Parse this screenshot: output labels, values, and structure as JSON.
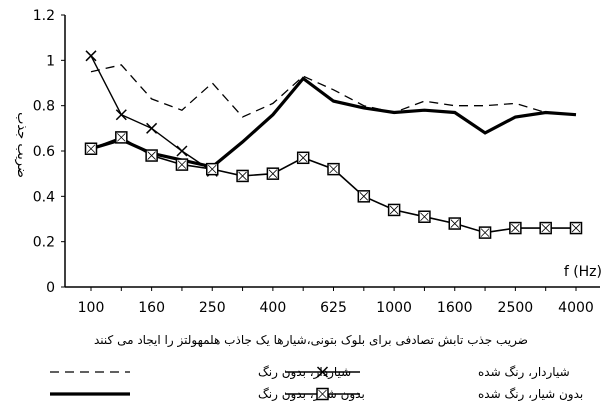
{
  "chart_data": {
    "type": "line",
    "title": "",
    "caption": "ضریب جذب تابش تصادفی برای بلوک بتونی،شیارها یک جاذب هلمهولتز را ایجاد می کنند",
    "xlabel": "f (Hz)",
    "ylabel": "ضریب جذب",
    "x_scale": "log",
    "categories": [
      "100",
      "125",
      "160",
      "200",
      "250",
      "315",
      "400",
      "500",
      "625",
      "800",
      "1000",
      "1250",
      "1600",
      "2000",
      "2500",
      "3150",
      "4000"
    ],
    "x_tick_labels": [
      "100",
      "160",
      "250",
      "400",
      "625",
      "1000",
      "1600",
      "2500",
      "4000"
    ],
    "y_tick_labels": [
      "0",
      "0.2",
      "0.4",
      "0.6",
      "0.8",
      "1",
      "1.2"
    ],
    "ylim": [
      0,
      1.2
    ],
    "grid": false,
    "legend_position": "bottom",
    "series": [
      {
        "name": "شیاردار، بدون رنگ",
        "style": "dashed",
        "marker": "none",
        "values": [
          0.95,
          0.98,
          0.83,
          0.78,
          0.9,
          0.75,
          0.81,
          0.93,
          0.87,
          0.8,
          0.77,
          0.82,
          0.8,
          0.8,
          0.81,
          0.77,
          0.76
        ]
      },
      {
        "name": "شیاردار، رنگ شده",
        "style": "solid-thin",
        "marker": "x",
        "values": [
          1.02,
          0.76,
          0.7,
          0.6,
          0.51,
          null,
          null,
          null,
          null,
          null,
          null,
          null,
          null,
          null,
          null,
          null,
          null
        ]
      },
      {
        "name": "بدون شیار، بدون رنگ",
        "style": "solid-thick",
        "marker": "none",
        "values": [
          0.61,
          0.65,
          0.59,
          0.56,
          0.53,
          0.64,
          0.76,
          0.92,
          0.82,
          0.79,
          0.77,
          0.78,
          0.77,
          0.68,
          0.75,
          0.77,
          0.76
        ]
      },
      {
        "name": "بدون شیار، رنگ شده",
        "style": "solid",
        "marker": "boxed-x",
        "values": [
          0.61,
          0.66,
          0.58,
          0.54,
          0.52,
          0.49,
          0.5,
          0.57,
          0.52,
          0.4,
          0.34,
          0.31,
          0.28,
          0.24,
          0.26,
          0.26,
          0.26
        ]
      }
    ]
  }
}
